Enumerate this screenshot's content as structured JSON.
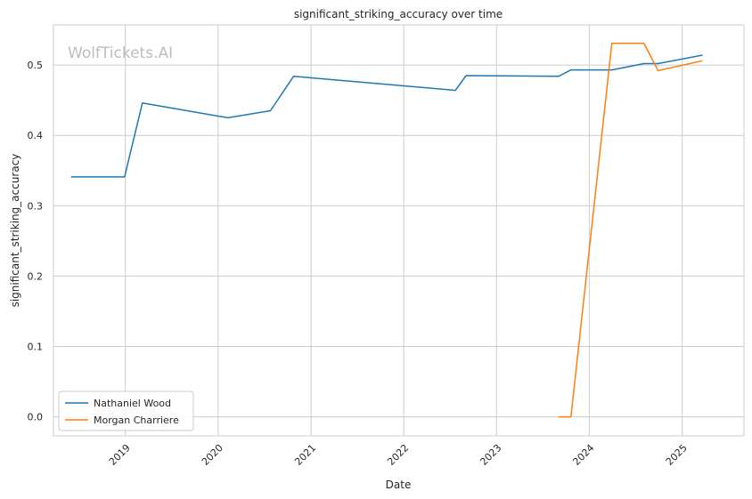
{
  "chart_data": {
    "type": "line",
    "title": "significant_striking_accuracy over time",
    "xlabel": "Date",
    "ylabel": "significant_striking_accuracy",
    "watermark": "WolfTickets.AI",
    "x_ticks": [
      "2019",
      "2020",
      "2021",
      "2022",
      "2023",
      "2024",
      "2025"
    ],
    "y_ticks": [
      "0.0",
      "0.1",
      "0.2",
      "0.3",
      "0.4",
      "0.5"
    ],
    "xlim": [
      "2018-03-24",
      "2025-09-01"
    ],
    "ylim": [
      -0.027,
      0.557
    ],
    "grid": true,
    "legend_position": "lower-left",
    "series": [
      {
        "name": "Nathaniel Wood",
        "color": "#1f77b4",
        "points": [
          [
            "2018-06-01",
            0.341
          ],
          [
            "2018-12-29",
            0.341
          ],
          [
            "2019-03-09",
            0.446
          ],
          [
            "2020-02-08",
            0.425
          ],
          [
            "2020-07-25",
            0.435
          ],
          [
            "2020-10-24",
            0.484
          ],
          [
            "2022-07-23",
            0.464
          ],
          [
            "2022-09-03",
            0.485
          ],
          [
            "2023-09-02",
            0.484
          ],
          [
            "2023-10-21",
            0.493
          ],
          [
            "2024-03-30",
            0.493
          ],
          [
            "2024-08-03",
            0.502
          ],
          [
            "2024-09-28",
            0.502
          ],
          [
            "2025-03-22",
            0.514
          ]
        ]
      },
      {
        "name": "Morgan Charriere",
        "color": "#ff7f0e",
        "points": [
          [
            "2023-09-02",
            0.0
          ],
          [
            "2023-10-21",
            0.0
          ],
          [
            "2024-03-30",
            0.531
          ],
          [
            "2024-08-03",
            0.531
          ],
          [
            "2024-09-28",
            0.492
          ],
          [
            "2025-03-22",
            0.506
          ]
        ]
      }
    ]
  }
}
